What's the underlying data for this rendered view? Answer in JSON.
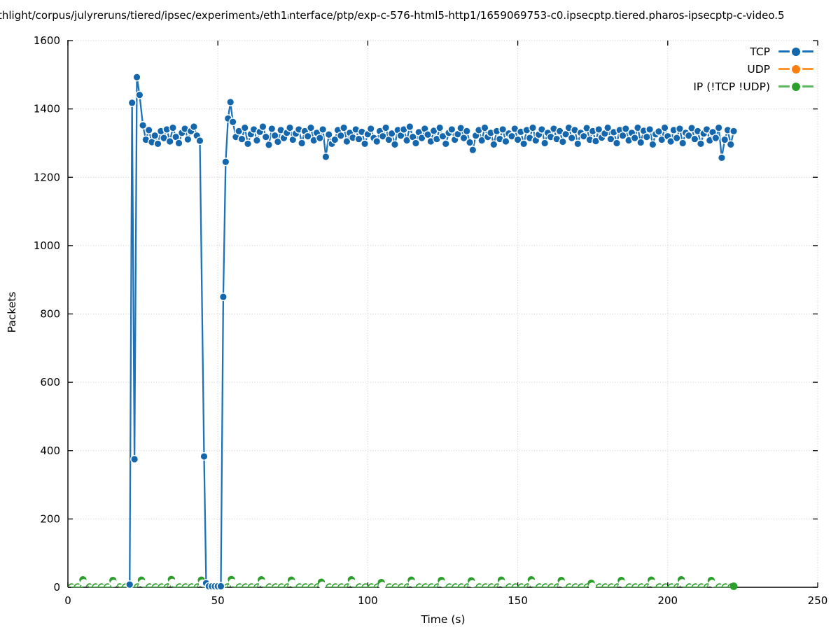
{
  "title": "thlight/corpus/julyreruns/tiered/ipsec/experiment₃/eth1ᵢnterface/ptp/exp-c-576-html5-http1/1659069753-c0.ipsecptp.tiered.pharos-ipsecptp-c-video.5",
  "axes": {
    "xlabel": "Time (s)",
    "ylabel": "Packets",
    "x_ticks": [
      0,
      50,
      100,
      150,
      200,
      250
    ],
    "y_ticks": [
      0,
      200,
      400,
      600,
      800,
      1000,
      1200,
      1400,
      1600
    ],
    "xlim": [
      0,
      250
    ],
    "ylim": [
      0,
      1600
    ]
  },
  "legend": {
    "items": [
      {
        "label": "TCP",
        "line_color": "#1d72b8",
        "marker_color": "#1467ac"
      },
      {
        "label": "UDP",
        "line_color": "#ff9433",
        "marker_color": "#ff7f0e"
      },
      {
        "label": "IP (!TCP  !UDP)",
        "line_color": "#5cb85c",
        "marker_color": "#2b9e2b"
      }
    ]
  },
  "chart_data": {
    "type": "line",
    "title": "thlight/corpus/julyreruns/tiered/ipsec/experiment₃/eth1ᵢnterface/ptp/exp-c-576-html5-http1/1659069753-c0.ipsecptp.tiered.pharos-ipsecptp-c-video.5",
    "xlabel": "Time (s)",
    "ylabel": "Packets",
    "xlim": [
      0,
      250
    ],
    "ylim": [
      0,
      1600
    ],
    "grid": true,
    "grid_style": "dotted",
    "legend_position": "top-right",
    "series": [
      {
        "name": "TCP",
        "line_color": "#1d72b8",
        "marker_color": "#1467ac",
        "marker": "filled-circle-white-edge",
        "points": [
          [
            20.6,
            8
          ],
          [
            21.4,
            1418
          ],
          [
            22.2,
            375
          ],
          [
            23,
            1493
          ],
          [
            23.9,
            1441
          ],
          [
            25,
            1352
          ],
          [
            26,
            1310
          ],
          [
            27,
            1338
          ],
          [
            28,
            1303
          ],
          [
            29,
            1322
          ],
          [
            30,
            1298
          ],
          [
            31,
            1335
          ],
          [
            32,
            1315
          ],
          [
            33,
            1340
          ],
          [
            34,
            1305
          ],
          [
            35,
            1345
          ],
          [
            36,
            1318
          ],
          [
            37,
            1300
          ],
          [
            38,
            1330
          ],
          [
            39,
            1342
          ],
          [
            40,
            1311
          ],
          [
            41,
            1335
          ],
          [
            42,
            1348
          ],
          [
            43,
            1322
          ],
          [
            44,
            1307
          ],
          [
            45.4,
            383
          ],
          [
            46.1,
            12
          ],
          [
            47,
            3
          ],
          [
            48,
            3
          ],
          [
            49,
            3
          ],
          [
            50,
            3
          ],
          [
            51,
            3
          ],
          [
            51.8,
            850
          ],
          [
            52.6,
            1245
          ],
          [
            53.4,
            1372
          ],
          [
            54.2,
            1420
          ],
          [
            55,
            1362
          ],
          [
            56,
            1318
          ],
          [
            57,
            1335
          ],
          [
            58,
            1312
          ],
          [
            59,
            1345
          ],
          [
            60,
            1298
          ],
          [
            61,
            1326
          ],
          [
            62,
            1340
          ],
          [
            63,
            1308
          ],
          [
            64,
            1333
          ],
          [
            65,
            1348
          ],
          [
            66,
            1318
          ],
          [
            67,
            1295
          ],
          [
            68,
            1342
          ],
          [
            69,
            1322
          ],
          [
            70,
            1304
          ],
          [
            71,
            1338
          ],
          [
            72,
            1315
          ],
          [
            73,
            1330
          ],
          [
            74,
            1345
          ],
          [
            75,
            1310
          ],
          [
            76,
            1328
          ],
          [
            77,
            1340
          ],
          [
            78,
            1300
          ],
          [
            79,
            1335
          ],
          [
            80,
            1320
          ],
          [
            81,
            1345
          ],
          [
            82,
            1308
          ],
          [
            83,
            1330
          ],
          [
            84,
            1315
          ],
          [
            85,
            1340
          ],
          [
            86,
            1260
          ],
          [
            87,
            1325
          ],
          [
            88,
            1298
          ],
          [
            89,
            1310
          ],
          [
            90,
            1338
          ],
          [
            91,
            1322
          ],
          [
            92,
            1345
          ],
          [
            93,
            1305
          ],
          [
            94,
            1330
          ],
          [
            95,
            1316
          ],
          [
            96,
            1340
          ],
          [
            97,
            1312
          ],
          [
            98,
            1333
          ],
          [
            99,
            1298
          ],
          [
            100,
            1326
          ],
          [
            101,
            1342
          ],
          [
            102,
            1315
          ],
          [
            103,
            1305
          ],
          [
            104,
            1335
          ],
          [
            105,
            1320
          ],
          [
            106,
            1345
          ],
          [
            107,
            1310
          ],
          [
            108,
            1328
          ],
          [
            109,
            1296
          ],
          [
            110,
            1338
          ],
          [
            111,
            1322
          ],
          [
            112,
            1340
          ],
          [
            113,
            1308
          ],
          [
            114,
            1348
          ],
          [
            115,
            1318
          ],
          [
            116,
            1300
          ],
          [
            117,
            1332
          ],
          [
            118,
            1315
          ],
          [
            119,
            1342
          ],
          [
            120,
            1325
          ],
          [
            121,
            1305
          ],
          [
            122,
            1336
          ],
          [
            123,
            1312
          ],
          [
            124,
            1345
          ],
          [
            125,
            1320
          ],
          [
            126,
            1298
          ],
          [
            127,
            1330
          ],
          [
            128,
            1340
          ],
          [
            129,
            1310
          ],
          [
            130,
            1326
          ],
          [
            131,
            1344
          ],
          [
            132,
            1315
          ],
          [
            133,
            1335
          ],
          [
            134,
            1302
          ],
          [
            135,
            1280
          ],
          [
            136,
            1322
          ],
          [
            137,
            1338
          ],
          [
            138,
            1308
          ],
          [
            139,
            1345
          ],
          [
            140,
            1318
          ],
          [
            141,
            1330
          ],
          [
            142,
            1296
          ],
          [
            143,
            1335
          ],
          [
            144,
            1312
          ],
          [
            145,
            1340
          ],
          [
            146,
            1305
          ],
          [
            147,
            1328
          ],
          [
            148,
            1320
          ],
          [
            149,
            1342
          ],
          [
            150,
            1310
          ],
          [
            151,
            1333
          ],
          [
            152,
            1298
          ],
          [
            153,
            1338
          ],
          [
            154,
            1315
          ],
          [
            155,
            1345
          ],
          [
            156,
            1308
          ],
          [
            157,
            1325
          ],
          [
            158,
            1340
          ],
          [
            159,
            1300
          ],
          [
            160,
            1330
          ],
          [
            161,
            1318
          ],
          [
            162,
            1342
          ],
          [
            163,
            1312
          ],
          [
            164,
            1335
          ],
          [
            165,
            1304
          ],
          [
            166,
            1326
          ],
          [
            167,
            1345
          ],
          [
            168,
            1315
          ],
          [
            169,
            1338
          ],
          [
            170,
            1298
          ],
          [
            171,
            1330
          ],
          [
            172,
            1320
          ],
          [
            173,
            1344
          ],
          [
            174,
            1310
          ],
          [
            175,
            1335
          ],
          [
            176,
            1306
          ],
          [
            177,
            1340
          ],
          [
            178,
            1316
          ],
          [
            179,
            1328
          ],
          [
            180,
            1345
          ],
          [
            181,
            1312
          ],
          [
            182,
            1332
          ],
          [
            183,
            1300
          ],
          [
            184,
            1338
          ],
          [
            185,
            1322
          ],
          [
            186,
            1342
          ],
          [
            187,
            1308
          ],
          [
            188,
            1330
          ],
          [
            189,
            1315
          ],
          [
            190,
            1345
          ],
          [
            191,
            1302
          ],
          [
            192,
            1336
          ],
          [
            193,
            1318
          ],
          [
            194,
            1340
          ],
          [
            195,
            1296
          ],
          [
            196,
            1326
          ],
          [
            197,
            1334
          ],
          [
            198,
            1310
          ],
          [
            199,
            1345
          ],
          [
            200,
            1320
          ],
          [
            201,
            1305
          ],
          [
            202,
            1338
          ],
          [
            203,
            1315
          ],
          [
            204,
            1342
          ],
          [
            205,
            1300
          ],
          [
            206,
            1330
          ],
          [
            207,
            1322
          ],
          [
            208,
            1344
          ],
          [
            209,
            1312
          ],
          [
            210,
            1335
          ],
          [
            211,
            1298
          ],
          [
            212,
            1328
          ],
          [
            213,
            1340
          ],
          [
            214,
            1308
          ],
          [
            215,
            1332
          ],
          [
            216,
            1315
          ],
          [
            217,
            1345
          ],
          [
            218,
            1257
          ],
          [
            219,
            1310
          ],
          [
            220,
            1338
          ],
          [
            221,
            1296
          ],
          [
            222,
            1335
          ]
        ]
      },
      {
        "name": "UDP",
        "line_color": "#ff9433",
        "marker_color": "#ff7f0e",
        "marker": "filled-circle-white-edge",
        "points": []
      },
      {
        "name": "IP (!TCP  !UDP)",
        "line_color": "#5cb85c",
        "marker_color": "#2b9e2b",
        "marker": "filled-circle-crescent",
        "spikes": [
          [
            5,
            22
          ],
          [
            15,
            20
          ],
          [
            24.5,
            21
          ],
          [
            34.5,
            23
          ],
          [
            44.5,
            21
          ],
          [
            54.5,
            23
          ],
          [
            64.5,
            22
          ],
          [
            74.5,
            21
          ],
          [
            84.5,
            15
          ],
          [
            94.5,
            22
          ],
          [
            104.5,
            14
          ],
          [
            114.5,
            21
          ],
          [
            124.5,
            20
          ],
          [
            134.5,
            19
          ],
          [
            144.5,
            21
          ],
          [
            154.5,
            22
          ],
          [
            164.5,
            20
          ],
          [
            174.5,
            12
          ],
          [
            184.5,
            20
          ],
          [
            194.5,
            21
          ],
          [
            204.5,
            22
          ],
          [
            214.5,
            20
          ]
        ],
        "base": {
          "t_start": 1,
          "t_end": 221,
          "step": 2,
          "value": 1
        },
        "final_point": [
          222,
          3
        ]
      }
    ],
    "colors": {
      "grid": "#c9c9c9",
      "axis": "#000000",
      "background": "#ffffff"
    }
  }
}
